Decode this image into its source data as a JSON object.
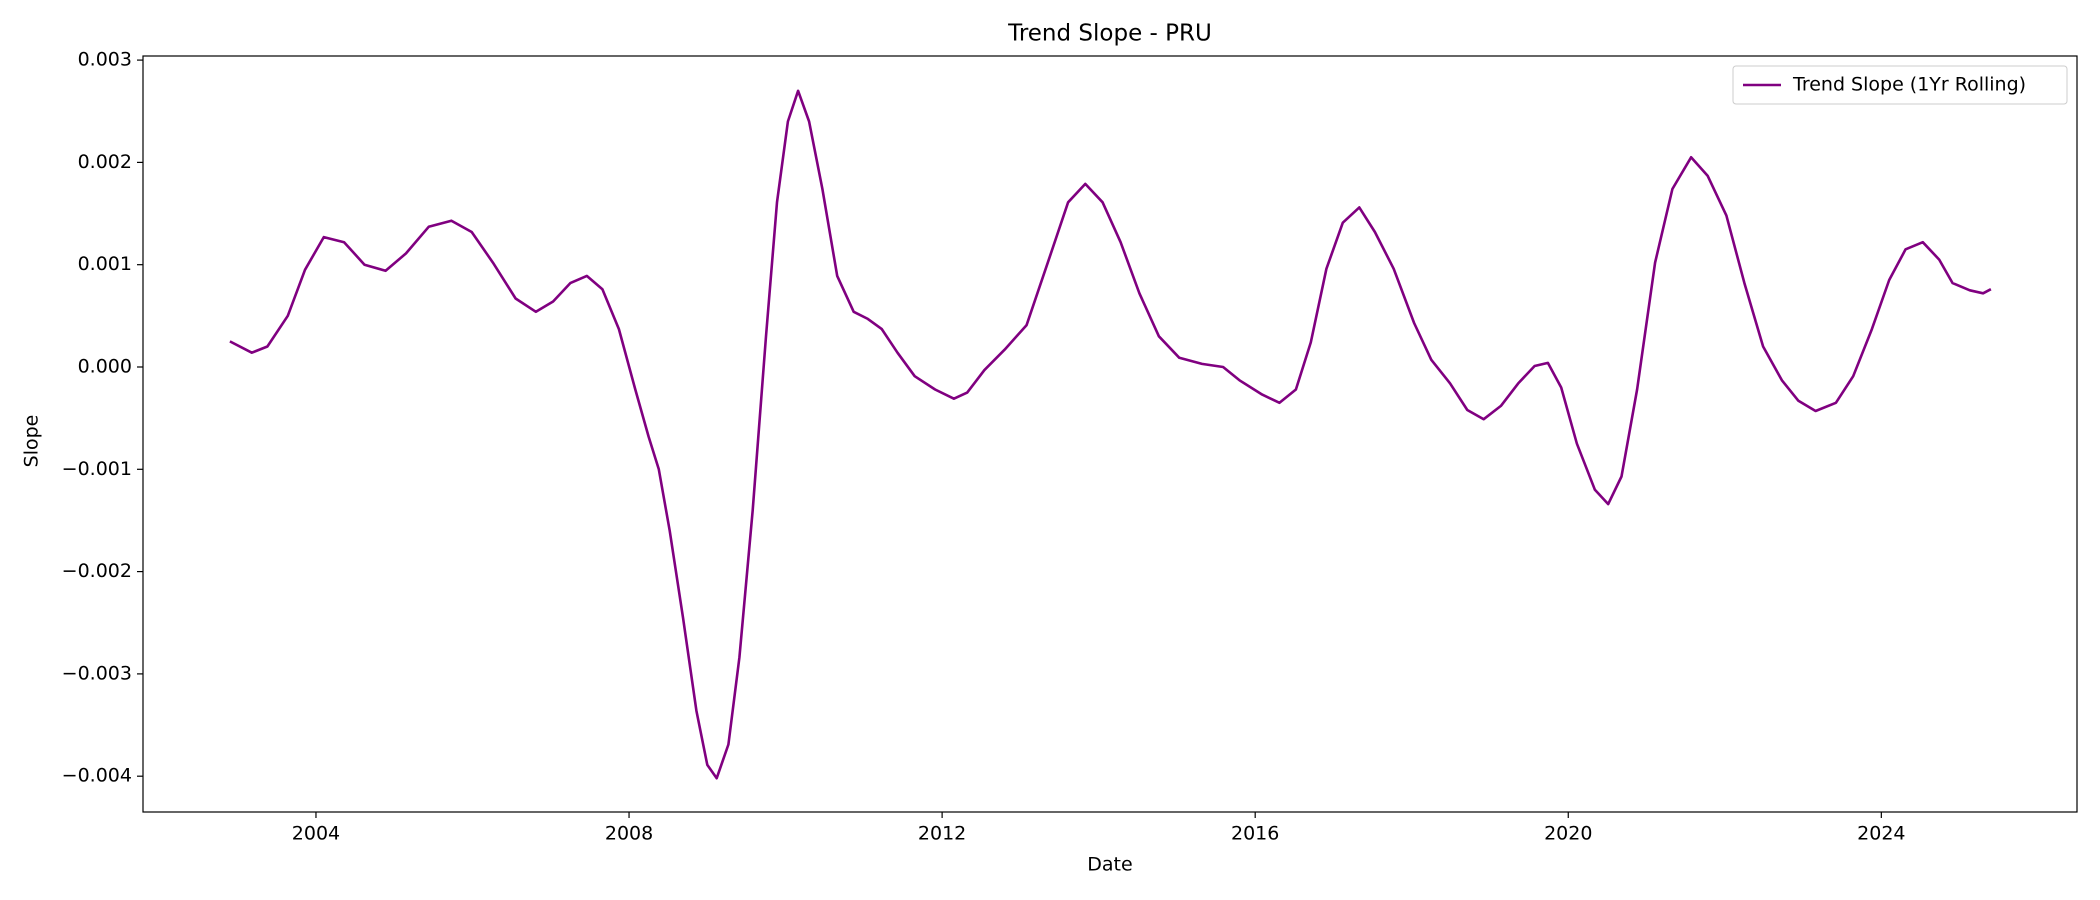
{
  "chart_data": {
    "type": "line",
    "title": "Trend Slope - PRU",
    "xlabel": "Date",
    "ylabel": "Slope",
    "x": [
      2002.9,
      2003.18,
      2003.38,
      2003.64,
      2003.86,
      2004.1,
      2004.36,
      2004.62,
      2004.89,
      2005.15,
      2005.44,
      2005.73,
      2005.99,
      2006.26,
      2006.55,
      2006.81,
      2007.03,
      2007.25,
      2007.46,
      2007.66,
      2007.87,
      2008.08,
      2008.25,
      2008.38,
      2008.52,
      2008.69,
      2008.86,
      2009.0,
      2009.12,
      2009.27,
      2009.41,
      2009.58,
      2009.75,
      2009.89,
      2010.03,
      2010.16,
      2010.3,
      2010.47,
      2010.66,
      2010.87,
      2011.05,
      2011.23,
      2011.43,
      2011.65,
      2011.91,
      2012.15,
      2012.32,
      2012.54,
      2012.8,
      2013.08,
      2013.35,
      2013.61,
      2013.83,
      2014.05,
      2014.28,
      2014.52,
      2014.77,
      2015.03,
      2015.32,
      2015.59,
      2015.8,
      2016.09,
      2016.31,
      2016.52,
      2016.71,
      2016.91,
      2017.12,
      2017.33,
      2017.53,
      2017.77,
      2018.03,
      2018.25,
      2018.49,
      2018.71,
      2018.92,
      2019.14,
      2019.36,
      2019.57,
      2019.74,
      2019.91,
      2020.11,
      2020.34,
      2020.51,
      2020.68,
      2020.88,
      2021.11,
      2021.33,
      2021.57,
      2021.78,
      2022.02,
      2022.25,
      2022.49,
      2022.73,
      2022.94,
      2023.16,
      2023.42,
      2023.64,
      2023.88,
      2024.1,
      2024.31,
      2024.53,
      2024.74,
      2024.91,
      2025.13,
      2025.3,
      2025.4
    ],
    "series": [
      {
        "name": "Trend Slope (1Yr Rolling)",
        "color": "#800080",
        "values": [
          0.00025,
          0.00014,
          0.0002,
          0.0005,
          0.00095,
          0.00127,
          0.00122,
          0.001,
          0.00094,
          0.00111,
          0.00137,
          0.00143,
          0.00132,
          0.00102,
          0.00067,
          0.00054,
          0.00064,
          0.00082,
          0.00089,
          0.00076,
          0.00037,
          -0.00022,
          -0.00068,
          -0.001,
          -0.0016,
          -0.00245,
          -0.00336,
          -0.00389,
          -0.00402,
          -0.00369,
          -0.00284,
          -0.0014,
          0.0003,
          0.00161,
          0.0024,
          0.0027,
          0.0024,
          0.00174,
          0.00089,
          0.00054,
          0.00047,
          0.00037,
          0.00014,
          -9e-05,
          -0.00022,
          -0.00031,
          -0.00025,
          -3e-05,
          0.00017,
          0.00041,
          0.00102,
          0.00161,
          0.00179,
          0.00161,
          0.00122,
          0.00072,
          0.0003,
          9e-05,
          3e-05,
          0.0,
          -0.00013,
          -0.00027,
          -0.00035,
          -0.00022,
          0.00024,
          0.00096,
          0.00141,
          0.00156,
          0.00132,
          0.00096,
          0.00043,
          7e-05,
          -0.00016,
          -0.00042,
          -0.00051,
          -0.00038,
          -0.00016,
          1e-05,
          4e-05,
          -0.0002,
          -0.00075,
          -0.0012,
          -0.00134,
          -0.00107,
          -0.00022,
          0.00102,
          0.00174,
          0.00205,
          0.00187,
          0.00148,
          0.00082,
          0.0002,
          -0.00013,
          -0.00033,
          -0.00043,
          -0.00035,
          -9e-05,
          0.00037,
          0.00085,
          0.00115,
          0.00122,
          0.00105,
          0.00082,
          0.00075,
          0.00072,
          0.00076
        ]
      }
    ],
    "xlim": [
      2001.79,
      2026.5
    ],
    "xticks": [
      2004,
      2008,
      2012,
      2016,
      2020,
      2024
    ],
    "ylim": [
      -0.00435,
      0.00304
    ],
    "yticks": [
      {
        "value": -0.004,
        "label": "−0.004"
      },
      {
        "value": -0.003,
        "label": "−0.003"
      },
      {
        "value": -0.002,
        "label": "−0.002"
      },
      {
        "value": -0.001,
        "label": "−0.001"
      },
      {
        "value": 0,
        "label": "0.000"
      },
      {
        "value": 0.001,
        "label": "0.001"
      },
      {
        "value": 0.002,
        "label": "0.002"
      },
      {
        "value": 0.003,
        "label": "0.003"
      }
    ],
    "legend": "upper right"
  }
}
